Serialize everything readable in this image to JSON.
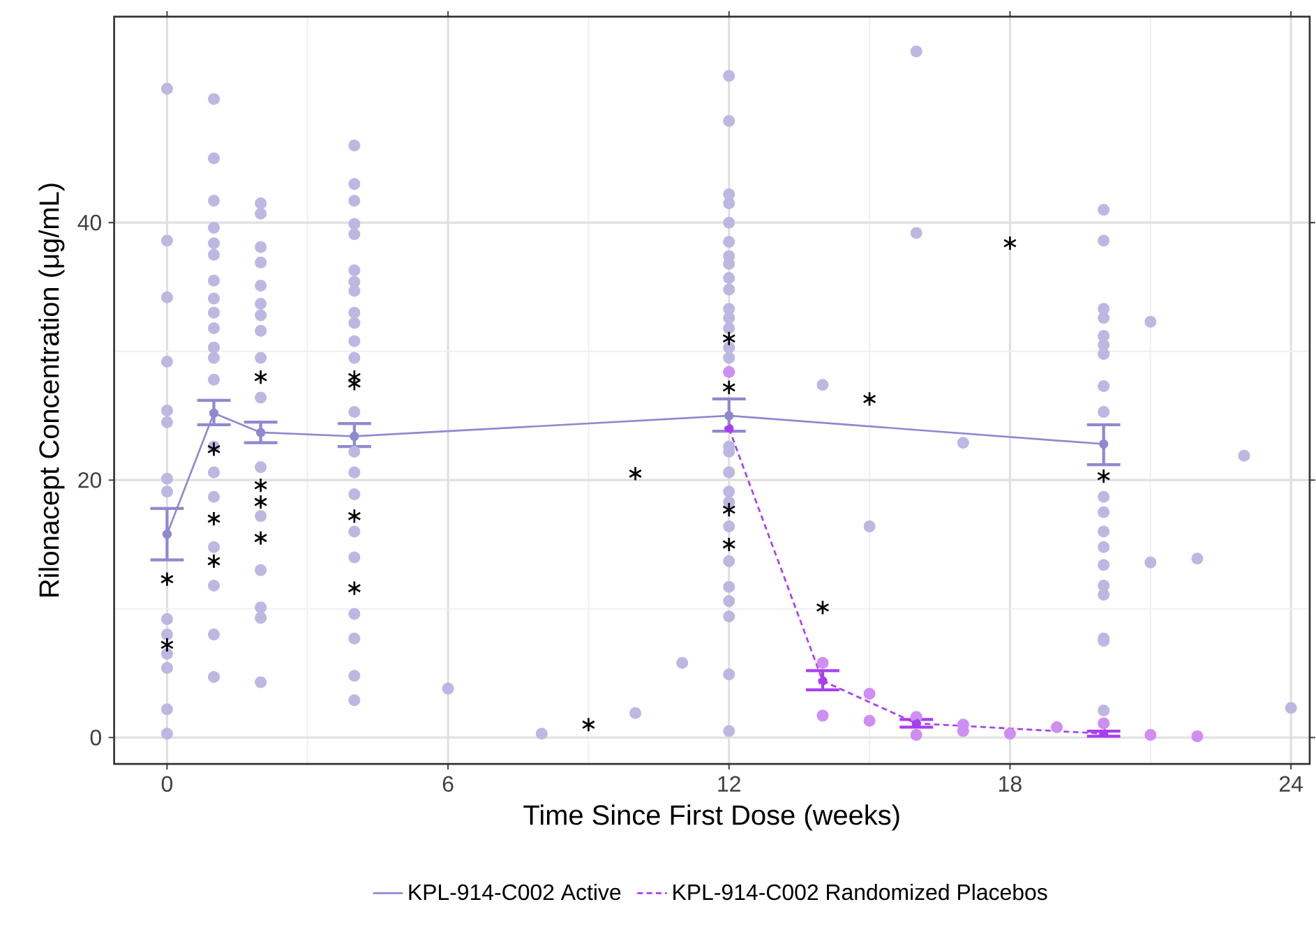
{
  "chart_data": {
    "type": "scatter",
    "xlabel": "Time Since First Dose (weeks)",
    "ylabel": "Rilonacept Concentration (μg/mL)",
    "xlim": [
      -1.13,
      24.4
    ],
    "ylim": [
      -2.05,
      56
    ],
    "xticks": [
      0,
      6,
      12,
      18,
      24
    ],
    "yticks": [
      0,
      20,
      40
    ],
    "grid": true,
    "legend": "bottom",
    "series": [
      {
        "color": "#bcb8e2",
        "marker": "circle",
        "x": [
          0,
          0,
          0,
          0,
          0,
          0,
          0,
          0,
          0,
          0,
          0,
          0,
          0,
          0,
          1,
          1,
          1,
          1,
          1,
          1,
          1,
          1,
          1,
          1,
          1,
          1,
          1,
          1,
          1,
          1,
          1,
          1,
          1,
          1,
          2,
          2,
          2,
          2,
          2,
          2,
          2,
          2,
          2,
          2,
          2,
          2,
          2,
          2,
          2,
          2,
          4,
          4,
          4,
          4,
          4,
          4,
          4,
          4,
          4,
          4,
          4,
          4,
          4,
          4,
          4,
          4,
          4,
          4,
          4,
          4,
          4,
          4,
          6,
          8,
          10,
          11,
          12,
          12,
          12,
          12,
          12,
          12,
          12,
          12,
          12,
          12,
          12,
          12,
          12,
          12,
          12,
          12,
          12,
          12,
          12,
          12,
          12,
          12,
          12,
          12,
          12,
          12,
          12,
          14,
          15,
          16,
          16,
          17,
          20,
          20,
          20,
          20,
          20,
          20,
          20,
          20,
          20,
          20,
          20,
          20,
          20,
          20,
          20,
          20,
          20,
          20,
          20,
          21,
          21,
          22,
          23,
          24
        ],
        "values": [
          50.4,
          38.6,
          34.2,
          29.2,
          25.4,
          24.5,
          20.1,
          19.1,
          9.2,
          8.0,
          6.5,
          5.4,
          2.2,
          0.3,
          49.6,
          45.0,
          41.7,
          39.6,
          38.4,
          37.5,
          35.5,
          34.1,
          33.0,
          31.8,
          30.3,
          29.5,
          27.8,
          22.6,
          20.6,
          18.7,
          14.8,
          11.8,
          8.0,
          4.7,
          41.5,
          40.7,
          38.1,
          36.9,
          35.1,
          33.7,
          32.8,
          31.6,
          29.5,
          26.4,
          21.0,
          17.2,
          13.0,
          10.1,
          9.3,
          4.3,
          46.0,
          43.0,
          41.7,
          39.9,
          39.1,
          36.3,
          35.4,
          34.7,
          33.0,
          32.2,
          30.8,
          29.5,
          25.3,
          22.2,
          20.6,
          18.9,
          16.0,
          14.0,
          9.6,
          7.7,
          4.8,
          2.9,
          3.8,
          0.3,
          1.9,
          5.8,
          51.4,
          47.9,
          42.2,
          41.5,
          40.0,
          38.5,
          37.4,
          36.8,
          35.7,
          34.8,
          33.3,
          32.6,
          31.8,
          30.3,
          29.5,
          22.6,
          22.2,
          20.6,
          19.1,
          18.3,
          16.4,
          13.7,
          11.7,
          10.6,
          9.4,
          4.9,
          0.5,
          27.4,
          16.4,
          53.3,
          39.2,
          22.9,
          41.0,
          38.6,
          33.3,
          32.6,
          31.2,
          30.5,
          29.8,
          27.3,
          25.3,
          18.7,
          17.5,
          16.0,
          14.8,
          13.4,
          11.8,
          11.1,
          7.7,
          7.5,
          2.1,
          32.3,
          13.6,
          13.9,
          21.9,
          2.3
        ]
      },
      {
        "color": "#cf8ef2",
        "marker": "circle",
        "x": [
          12,
          14,
          14,
          15,
          15,
          16,
          16,
          17,
          17,
          18,
          19,
          20,
          21,
          22
        ],
        "values": [
          28.4,
          5.8,
          1.7,
          3.4,
          1.3,
          1.6,
          0.2,
          1.0,
          0.5,
          0.3,
          0.8,
          1.1,
          0.2,
          0.1
        ]
      },
      {
        "type": "line",
        "name": "KPL-914-C002 Active",
        "color": "#8f89d0",
        "marker": "circle",
        "line_style": "solid",
        "x": [
          0,
          1,
          2,
          4,
          12,
          20
        ],
        "values": [
          15.8,
          25.2,
          23.7,
          23.4,
          25.0,
          22.8
        ],
        "errors": [
          [
            13.8,
            17.8
          ],
          [
            24.3,
            26.2
          ],
          [
            22.9,
            24.5
          ],
          [
            22.6,
            24.4
          ],
          [
            23.8,
            26.3
          ],
          [
            21.2,
            24.3
          ]
        ]
      },
      {
        "type": "line",
        "name": "KPL-914-C002 Randomized Placebos",
        "color": "#a83ef0",
        "marker": "circle",
        "line_style": "dashed",
        "x": [
          12,
          14,
          16,
          20
        ],
        "values": [
          24.0,
          4.4,
          1.1,
          0.3
        ],
        "errors": [
          null,
          [
            3.7,
            5.2
          ],
          [
            0.8,
            1.4
          ],
          [
            0.1,
            0.5
          ]
        ]
      },
      {
        "color": "#000000",
        "marker": "cross",
        "x": [
          0,
          0,
          1,
          1,
          1,
          2,
          2,
          2,
          2,
          4,
          4,
          4,
          4,
          9,
          10,
          12,
          12,
          12,
          12,
          14,
          15,
          18,
          20
        ],
        "values": [
          7.2,
          12.3,
          13.7,
          17.0,
          22.4,
          15.5,
          18.3,
          19.6,
          28.0,
          11.6,
          17.2,
          27.5,
          28.0,
          1.0,
          20.5,
          31.0,
          27.2,
          17.7,
          15.0,
          10.1,
          26.3,
          38.4,
          20.3
        ]
      }
    ]
  }
}
